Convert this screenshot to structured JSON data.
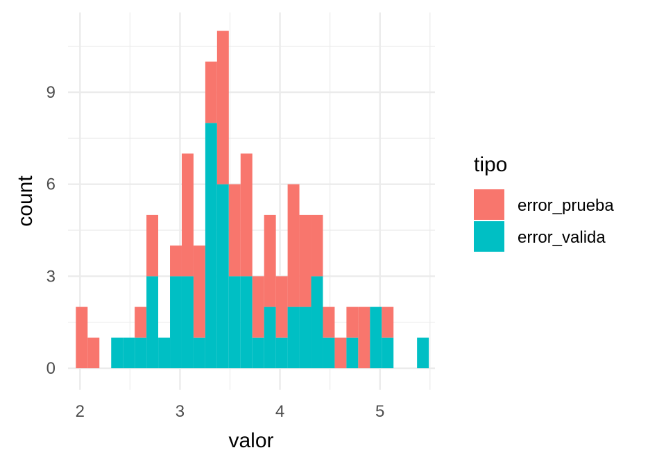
{
  "chart_data": {
    "type": "bar",
    "stacked": true,
    "xlabel": "valor",
    "ylabel": "count",
    "xlim": [
      1.88,
      5.55
    ],
    "ylim": [
      -0.7,
      11.6
    ],
    "x_ticks": [
      2,
      3,
      4,
      5
    ],
    "y_ticks": [
      0,
      3,
      6,
      9
    ],
    "grid": true,
    "legend_position": "right",
    "legend_title": "tipo",
    "bin_width": 0.1176,
    "bin_centers": [
      2.0176,
      2.1353,
      2.2529,
      2.3706,
      2.4882,
      2.6059,
      2.7235,
      2.8412,
      2.9588,
      3.0765,
      3.1941,
      3.3118,
      3.4294,
      3.5471,
      3.6647,
      3.7824,
      3.9,
      4.0176,
      4.1353,
      4.2529,
      4.3706,
      4.4882,
      4.6059,
      4.7235,
      4.8412,
      4.9588,
      5.0765,
      5.1941,
      5.3118,
      5.4294
    ],
    "series": [
      {
        "name": "error_prueba",
        "color": "#F8766D",
        "values": [
          2,
          1,
          0,
          0,
          0,
          1,
          2,
          0,
          1,
          4,
          3,
          2,
          5,
          3,
          4,
          2,
          3,
          2,
          4,
          3,
          2,
          1,
          1,
          1,
          2,
          0,
          1,
          0,
          0,
          0
        ]
      },
      {
        "name": "error_valida",
        "color": "#00BFC4",
        "values": [
          0,
          0,
          0,
          1,
          1,
          1,
          3,
          1,
          3,
          3,
          1,
          8,
          6,
          3,
          3,
          1,
          2,
          1,
          2,
          2,
          3,
          1,
          0,
          1,
          0,
          2,
          1,
          0,
          0,
          1
        ]
      }
    ]
  }
}
